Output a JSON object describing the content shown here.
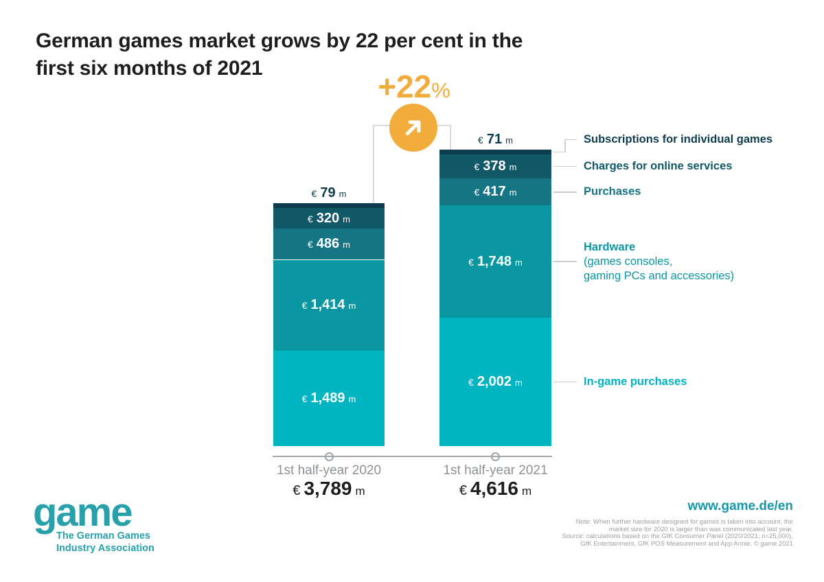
{
  "title": {
    "line1": "German games market grows by 22 per cent in the",
    "line2": "first six months of 2021"
  },
  "growth": {
    "value": "+22",
    "unit": "%"
  },
  "chart_data": {
    "type": "bar",
    "stacked": true,
    "title": "German games market grows by 22 per cent in the first six months of 2021",
    "unit": "€ million",
    "growth_label": "+22%",
    "grid": false,
    "legend_position": "right",
    "categories": [
      "1st half-year 2020",
      "1st half-year 2021"
    ],
    "totals": [
      3789,
      4616
    ],
    "total_labels": [
      "€ 3,789 m",
      "€ 4,616 m"
    ],
    "ylim": [
      0,
      4616
    ],
    "series": [
      {
        "name": "Subscriptions for individual games",
        "color": "#0D3D4C",
        "values": [
          79,
          71
        ],
        "labels": [
          "€ 79 m",
          "€ 71 m"
        ],
        "label_position": "above"
      },
      {
        "name": "Charges for online services",
        "color": "#115868",
        "values": [
          320,
          378
        ],
        "labels": [
          "€ 320 m",
          "€ 378 m"
        ]
      },
      {
        "name": "Purchases",
        "color": "#167584",
        "values": [
          486,
          417
        ],
        "labels": [
          "€ 486 m",
          "€ 417 m"
        ]
      },
      {
        "name": "Hardware",
        "sublabel": [
          "(games consoles,",
          "gaming PCs and accessories)"
        ],
        "color": "#0A97A2",
        "values": [
          1414,
          1748
        ],
        "labels": [
          "€ 1,414 m",
          "€ 1,748 m"
        ]
      },
      {
        "name": "In-game purchases",
        "color": "#00B4C1",
        "values": [
          1489,
          2002
        ],
        "labels": [
          "€ 1,489 m",
          "€ 2,002 m"
        ]
      }
    ]
  },
  "footer": {
    "logo_text": "game",
    "logo_subtitle_line1": "The German Games",
    "logo_subtitle_line2": "Industry Association",
    "website": "www.game.de/en",
    "note_lines": [
      "Note: When further hardware designed for games is taken into account, the",
      "market size for 2020 is larger than was communicated last year.",
      "Source: calculations based on the GfK Consumer Panel (2020/2021; n=25,000),",
      "GfK Entertainment, GfK POS Measurement and App Annie. © game 2021"
    ]
  },
  "colors": {
    "accent_orange": "#F2AC3C",
    "brand_teal": "#29A1AA",
    "link_teal": "#1897A6",
    "bracket_gray": "#CBCFD2",
    "axis_gray": "#9FA5A8",
    "category_gray": "#8C9296",
    "text_dark": "#1D1D1B",
    "note_gray": "#9BA1A5"
  }
}
